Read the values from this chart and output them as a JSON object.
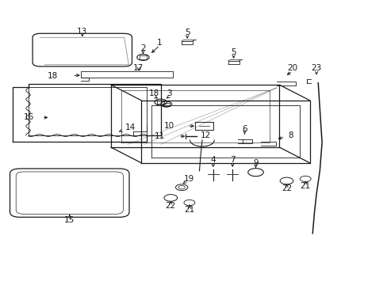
{
  "bg_color": "#ffffff",
  "line_color": "#1a1a1a",
  "figsize": [
    4.89,
    3.6
  ],
  "dpi": 100,
  "coords": {
    "glass13": [
      0.7,
      7.8,
      1.55,
      0.9
    ],
    "deflector17": [
      1.45,
      6.8,
      1.7,
      0.42
    ],
    "liner_frame": [
      0.22,
      5.0,
      2.65,
      1.95
    ],
    "glass15": [
      0.35,
      2.4,
      1.8,
      1.35
    ],
    "sunroof_frame": [
      2.5,
      4.25,
      3.2,
      3.0
    ]
  }
}
